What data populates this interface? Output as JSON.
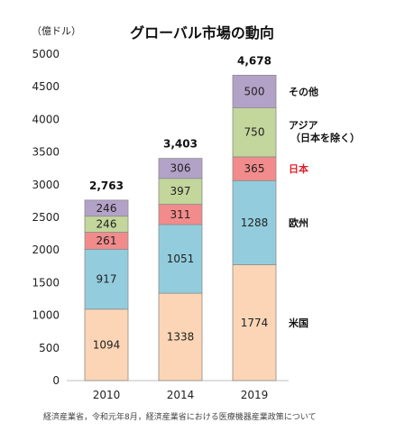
{
  "chart_data": {
    "type": "bar",
    "stacked": true,
    "title": "グローバル市場の動向",
    "unit_label": "（億ドル）",
    "categories": [
      "2010",
      "2014",
      "2019"
    ],
    "series": [
      {
        "name": "米国",
        "values": [
          1094,
          1338,
          1774
        ],
        "color": "#FBD5B5"
      },
      {
        "name": "欧州",
        "values": [
          917,
          1051,
          1288
        ],
        "color": "#93CDDD"
      },
      {
        "name": "日本",
        "values": [
          261,
          311,
          365
        ],
        "color": "#F28B8B",
        "legend_color": "#E0202A"
      },
      {
        "name": "アジア",
        "name_line2": "（日本を除く）",
        "values": [
          246,
          397,
          750
        ],
        "color": "#C3D69B"
      },
      {
        "name": "その他",
        "values": [
          246,
          306,
          500
        ],
        "color": "#B3A2C7"
      }
    ],
    "totals": [
      "2,763",
      "3,403",
      "4,678"
    ],
    "ylim": [
      0,
      5000
    ],
    "yticks": [
      0,
      500,
      1000,
      1500,
      2000,
      2500,
      3000,
      3500,
      4000,
      4500,
      5000
    ],
    "grid": false,
    "legend_placement": "right of last bar"
  },
  "source": "経済産業省，令和元年8月，経済産業省における医療機器産業政策について"
}
